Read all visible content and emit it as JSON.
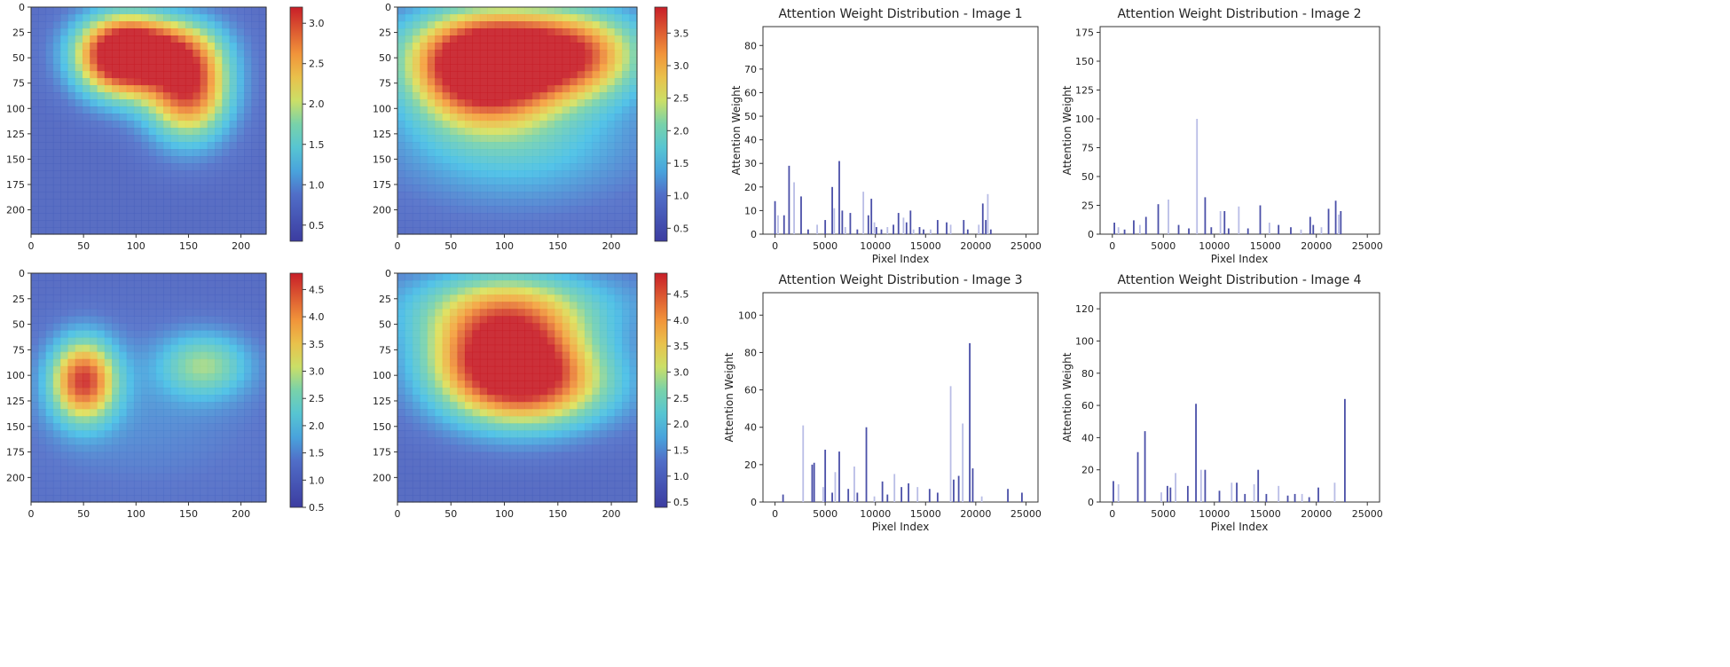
{
  "chart_data": [
    {
      "type": "heatmap",
      "name": "heatmap-1",
      "x_ticks": [
        "0",
        "50",
        "100",
        "150",
        "200"
      ],
      "y_ticks": [
        "0",
        "25",
        "50",
        "75",
        "100",
        "125",
        "150",
        "175",
        "200"
      ],
      "xlim": [
        0,
        224
      ],
      "ylim": [
        0,
        224
      ],
      "colorbar_ticks": [
        "0.5",
        "1.0",
        "1.5",
        "2.0",
        "2.5",
        "3.0"
      ],
      "colorbar_range": [
        0.3,
        3.2
      ],
      "hotspots": [
        {
          "x": 85,
          "y": 50,
          "sx": 30,
          "sy": 28,
          "value": 2.8
        },
        {
          "x": 150,
          "y": 80,
          "sx": 28,
          "sy": 35,
          "value": 2.6
        },
        {
          "x": 115,
          "y": 40,
          "sx": 40,
          "sy": 22,
          "value": 1.6
        }
      ]
    },
    {
      "type": "heatmap",
      "name": "heatmap-2",
      "x_ticks": [
        "0",
        "50",
        "100",
        "150",
        "200"
      ],
      "y_ticks": [
        "0",
        "25",
        "50",
        "75",
        "100",
        "125",
        "150",
        "175",
        "200"
      ],
      "xlim": [
        0,
        224
      ],
      "ylim": [
        0,
        224
      ],
      "colorbar_ticks": [
        "0.5",
        "1.0",
        "1.5",
        "2.0",
        "2.5",
        "3.0",
        "3.5"
      ],
      "colorbar_range": [
        0.3,
        3.9
      ],
      "hotspots": [
        {
          "x": 80,
          "y": 65,
          "sx": 45,
          "sy": 35,
          "value": 3.3
        },
        {
          "x": 110,
          "y": 40,
          "sx": 70,
          "sy": 30,
          "value": 2.2
        },
        {
          "x": 170,
          "y": 50,
          "sx": 40,
          "sy": 30,
          "value": 1.8
        },
        {
          "x": 110,
          "y": 130,
          "sx": 80,
          "sy": 45,
          "value": 1.2
        }
      ]
    },
    {
      "type": "heatmap",
      "name": "heatmap-3",
      "x_ticks": [
        "0",
        "50",
        "100",
        "150",
        "200"
      ],
      "y_ticks": [
        "0",
        "25",
        "50",
        "75",
        "100",
        "125",
        "150",
        "175",
        "200"
      ],
      "xlim": [
        0,
        224
      ],
      "ylim": [
        0,
        224
      ],
      "colorbar_ticks": [
        "0.5",
        "1.0",
        "1.5",
        "2.0",
        "2.5",
        "3.0",
        "3.5",
        "4.0",
        "4.5"
      ],
      "colorbar_range": [
        0.5,
        4.8
      ],
      "hotspots": [
        {
          "x": 50,
          "y": 105,
          "sx": 22,
          "sy": 28,
          "value": 3.8
        },
        {
          "x": 165,
          "y": 90,
          "sx": 30,
          "sy": 22,
          "value": 2.0
        },
        {
          "x": 110,
          "y": 140,
          "sx": 90,
          "sy": 60,
          "value": 0.9
        }
      ]
    },
    {
      "type": "heatmap",
      "name": "heatmap-4",
      "x_ticks": [
        "0",
        "50",
        "100",
        "150",
        "200"
      ],
      "y_ticks": [
        "0",
        "25",
        "50",
        "75",
        "100",
        "125",
        "150",
        "175",
        "200"
      ],
      "xlim": [
        0,
        224
      ],
      "ylim": [
        0,
        224
      ],
      "colorbar_ticks": [
        "0.5",
        "1.0",
        "1.5",
        "2.0",
        "2.5",
        "3.0",
        "3.5",
        "4.0",
        "4.5"
      ],
      "colorbar_range": [
        0.4,
        4.9
      ],
      "hotspots": [
        {
          "x": 100,
          "y": 75,
          "sx": 50,
          "sy": 40,
          "value": 4.2
        },
        {
          "x": 130,
          "y": 110,
          "sx": 55,
          "sy": 30,
          "value": 2.6
        },
        {
          "x": 110,
          "y": 30,
          "sx": 90,
          "sy": 25,
          "value": 1.4
        }
      ]
    },
    {
      "type": "bar",
      "name": "attention-1",
      "title": "Attention Weight Distribution - Image 1",
      "xlabel": "Pixel Index",
      "ylabel": "Attention Weight",
      "xlim": [
        -1200,
        26200
      ],
      "ylim": [
        0,
        88
      ],
      "x_ticks": [
        0,
        5000,
        10000,
        15000,
        20000,
        25000
      ],
      "y_ticks": [
        0,
        10,
        20,
        30,
        40,
        50,
        60,
        70,
        80
      ],
      "bars": [
        [
          0,
          14
        ],
        [
          300,
          8
        ],
        [
          900,
          8
        ],
        [
          1400,
          29
        ],
        [
          1900,
          22
        ],
        [
          2600,
          16
        ],
        [
          3300,
          2
        ],
        [
          4200,
          4
        ],
        [
          5000,
          6
        ],
        [
          5700,
          20
        ],
        [
          5900,
          11
        ],
        [
          6400,
          31
        ],
        [
          6700,
          10
        ],
        [
          7000,
          3
        ],
        [
          7500,
          9
        ],
        [
          8200,
          2
        ],
        [
          8800,
          18
        ],
        [
          9300,
          8
        ],
        [
          9600,
          15
        ],
        [
          9900,
          5
        ],
        [
          10100,
          3
        ],
        [
          10600,
          2
        ],
        [
          11200,
          3
        ],
        [
          11800,
          4
        ],
        [
          12300,
          9
        ],
        [
          12800,
          7
        ],
        [
          13100,
          5
        ],
        [
          13500,
          10
        ],
        [
          13800,
          2
        ],
        [
          14400,
          3
        ],
        [
          14800,
          2
        ],
        [
          15500,
          2
        ],
        [
          16200,
          6
        ],
        [
          17100,
          5
        ],
        [
          17500,
          4
        ],
        [
          18800,
          6
        ],
        [
          19200,
          2
        ],
        [
          20300,
          4
        ],
        [
          20700,
          13
        ],
        [
          21000,
          6
        ],
        [
          21200,
          17
        ],
        [
          21500,
          2
        ]
      ]
    },
    {
      "type": "bar",
      "name": "attention-2",
      "title": "Attention Weight Distribution - Image 2",
      "xlabel": "Pixel Index",
      "ylabel": "Attention Weight",
      "xlim": [
        -1200,
        26200
      ],
      "ylim": [
        0,
        180
      ],
      "x_ticks": [
        0,
        5000,
        10000,
        15000,
        20000,
        25000
      ],
      "y_ticks": [
        0,
        25,
        50,
        75,
        100,
        125,
        150,
        175
      ],
      "bars": [
        [
          200,
          10
        ],
        [
          600,
          6
        ],
        [
          1200,
          4
        ],
        [
          2100,
          12
        ],
        [
          2700,
          8
        ],
        [
          3300,
          15
        ],
        [
          4500,
          26
        ],
        [
          5500,
          30
        ],
        [
          6500,
          8
        ],
        [
          7500,
          5
        ],
        [
          8300,
          100
        ],
        [
          9100,
          32
        ],
        [
          9700,
          6
        ],
        [
          10600,
          20
        ],
        [
          11000,
          20
        ],
        [
          11400,
          5
        ],
        [
          12400,
          24
        ],
        [
          13300,
          5
        ],
        [
          14500,
          25
        ],
        [
          15400,
          10
        ],
        [
          16300,
          8
        ],
        [
          17500,
          6
        ],
        [
          18500,
          4
        ],
        [
          19400,
          15
        ],
        [
          19700,
          8
        ],
        [
          20500,
          6
        ],
        [
          21200,
          22
        ],
        [
          21900,
          29
        ],
        [
          22200,
          17
        ],
        [
          22400,
          20
        ]
      ]
    },
    {
      "type": "bar",
      "name": "attention-3",
      "title": "Attention Weight Distribution - Image 3",
      "xlabel": "Pixel Index",
      "ylabel": "Attention Weight",
      "xlim": [
        -1200,
        26200
      ],
      "ylim": [
        0,
        112
      ],
      "x_ticks": [
        0,
        5000,
        10000,
        15000,
        20000,
        25000
      ],
      "y_ticks": [
        0,
        20,
        40,
        60,
        80,
        100
      ],
      "bars": [
        [
          800,
          4
        ],
        [
          2800,
          41
        ],
        [
          3700,
          20
        ],
        [
          3900,
          21
        ],
        [
          4800,
          8
        ],
        [
          5000,
          28
        ],
        [
          5700,
          5
        ],
        [
          6000,
          16
        ],
        [
          6400,
          27
        ],
        [
          7300,
          7
        ],
        [
          7900,
          19
        ],
        [
          8200,
          5
        ],
        [
          9100,
          40
        ],
        [
          9900,
          3
        ],
        [
          10700,
          11
        ],
        [
          11200,
          4
        ],
        [
          11900,
          15
        ],
        [
          12600,
          8
        ],
        [
          13300,
          10
        ],
        [
          14200,
          8
        ],
        [
          15400,
          7
        ],
        [
          16200,
          5
        ],
        [
          17500,
          62
        ],
        [
          17800,
          12
        ],
        [
          18300,
          14
        ],
        [
          18700,
          42
        ],
        [
          19400,
          85
        ],
        [
          19700,
          18
        ],
        [
          20600,
          3
        ],
        [
          23200,
          7
        ],
        [
          24600,
          5
        ]
      ]
    },
    {
      "type": "bar",
      "name": "attention-4",
      "title": "Attention Weight Distribution - Image 4",
      "xlabel": "Pixel Index",
      "ylabel": "Attention Weight",
      "xlim": [
        -1200,
        26200
      ],
      "ylim": [
        0,
        130
      ],
      "x_ticks": [
        0,
        5000,
        10000,
        15000,
        20000,
        25000
      ],
      "y_ticks": [
        0,
        20,
        40,
        60,
        80,
        100,
        120
      ],
      "bars": [
        [
          100,
          13
        ],
        [
          600,
          11
        ],
        [
          2500,
          31
        ],
        [
          3200,
          44
        ],
        [
          4800,
          6
        ],
        [
          5400,
          10
        ],
        [
          5700,
          9
        ],
        [
          6200,
          18
        ],
        [
          7400,
          10
        ],
        [
          8200,
          61
        ],
        [
          8700,
          20
        ],
        [
          9100,
          20
        ],
        [
          10500,
          7
        ],
        [
          11700,
          12
        ],
        [
          12200,
          12
        ],
        [
          13000,
          5
        ],
        [
          13900,
          11
        ],
        [
          14300,
          20
        ],
        [
          15100,
          5
        ],
        [
          16300,
          10
        ],
        [
          17200,
          4
        ],
        [
          17900,
          5
        ],
        [
          18600,
          5
        ],
        [
          19300,
          3
        ],
        [
          20200,
          9
        ],
        [
          21800,
          12
        ],
        [
          22800,
          64
        ]
      ]
    }
  ]
}
